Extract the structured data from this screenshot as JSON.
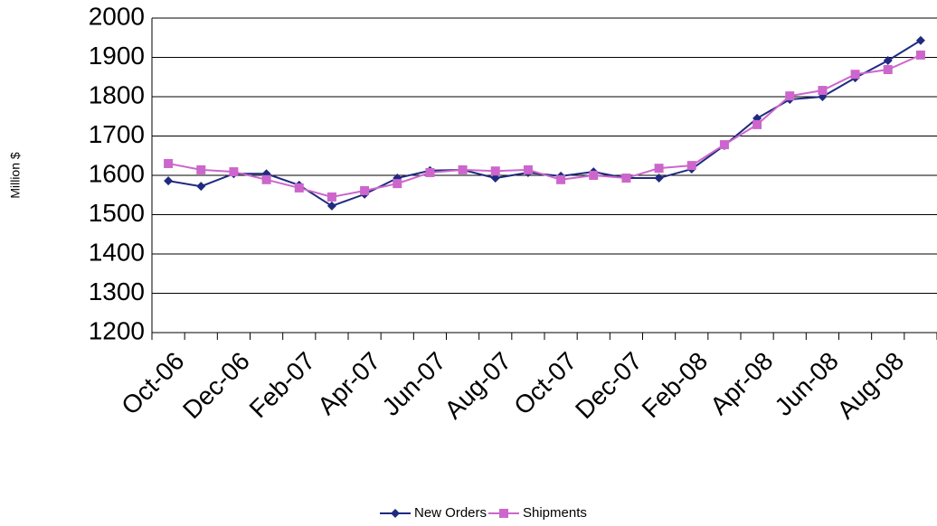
{
  "chart_data": {
    "type": "line",
    "y_label": "Million $",
    "categories": [
      "Oct-06",
      null,
      "Dec-06",
      null,
      "Feb-07",
      null,
      "Apr-07",
      null,
      "Jun-07",
      null,
      "Aug-07",
      null,
      "Oct-07",
      null,
      "Dec-07",
      null,
      "Feb-08",
      null,
      "Apr-08",
      null,
      "Jun-08",
      null,
      "Aug-08",
      null
    ],
    "series": [
      {
        "name": "New Orders",
        "color": "#1f2a80",
        "marker": "diamond",
        "values": [
          1586,
          1572,
          1604,
          1604,
          1575,
          1522,
          1552,
          1593,
          1612,
          1614,
          1593,
          1607,
          1598,
          1609,
          1593,
          1593,
          1616,
          1676,
          1745,
          1793,
          1800,
          1848,
          1892,
          1943
        ]
      },
      {
        "name": "Shipments",
        "color": "#cc66cc",
        "marker": "square",
        "values": [
          1630,
          1614,
          1609,
          1589,
          1568,
          1545,
          1561,
          1579,
          1607,
          1614,
          1611,
          1614,
          1589,
          1600,
          1593,
          1618,
          1625,
          1678,
          1729,
          1802,
          1816,
          1857,
          1869,
          1906
        ]
      }
    ],
    "ylim": [
      1200,
      2000
    ],
    "yticks": [
      1200,
      1300,
      1400,
      1500,
      1600,
      1700,
      1800,
      1900,
      2000
    ],
    "grid": true,
    "legend": "bottom"
  }
}
